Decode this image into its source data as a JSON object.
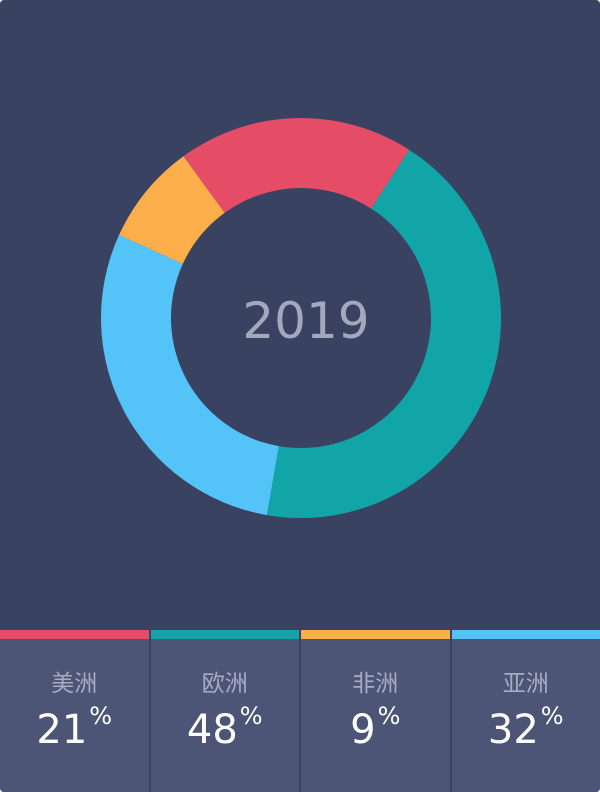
{
  "chart_data": {
    "type": "donut",
    "center_label": "2019",
    "segments": [
      {
        "name": "美洲",
        "value": 21,
        "color": "#e54d67"
      },
      {
        "name": "欧洲",
        "value": 48,
        "color": "#12a5a8"
      },
      {
        "name": "非洲",
        "value": 9,
        "color": "#fcae4b"
      },
      {
        "name": "亚洲",
        "value": 32,
        "color": "#54c4f8"
      }
    ],
    "unit": "%"
  },
  "legend": {
    "items": [
      {
        "label": "美洲",
        "value": "21",
        "unit": "%",
        "color": "#e54d67"
      },
      {
        "label": "欧洲",
        "value": "48",
        "unit": "%",
        "color": "#12a5a8"
      },
      {
        "label": "非洲",
        "value": "9",
        "unit": "%",
        "color": "#fcae4b"
      },
      {
        "label": "亚洲",
        "value": "32",
        "unit": "%",
        "color": "#54c4f8"
      }
    ]
  },
  "colors": {
    "background": "#3a4262",
    "legend_background": "#4d5577"
  }
}
